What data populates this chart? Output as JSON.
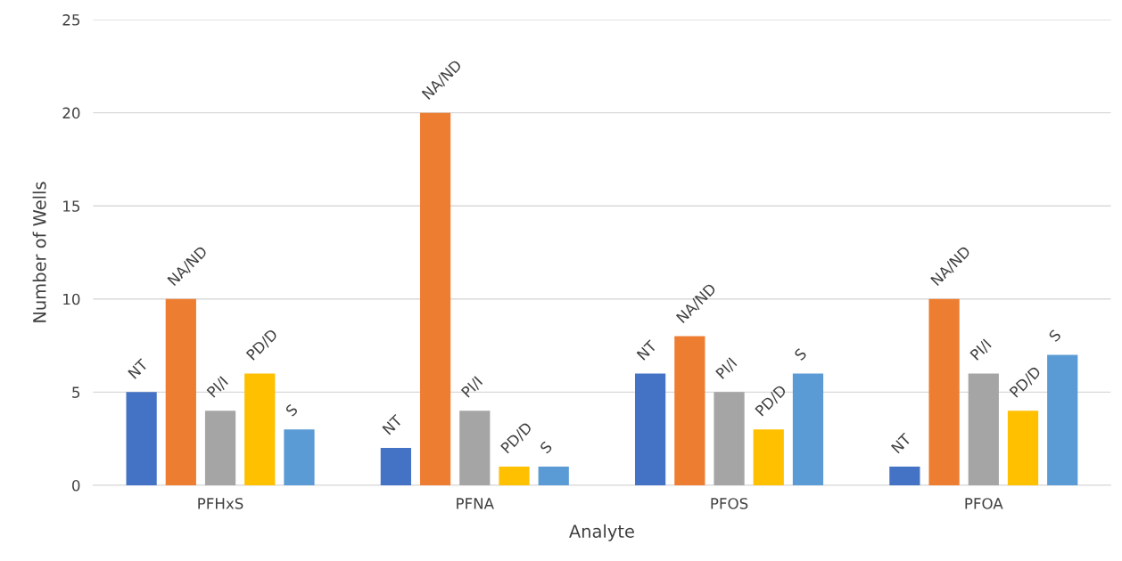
{
  "chart_data": {
    "type": "bar",
    "xlabel": "Analyte",
    "ylabel": "Number of Wells",
    "categories": [
      "PFHxS",
      "PFNA",
      "PFOS",
      "PFOA"
    ],
    "series": [
      {
        "name": "NT",
        "color": "#4472c4",
        "values": [
          5,
          2,
          6,
          1
        ]
      },
      {
        "name": "NA/ND",
        "color": "#ed7d31",
        "values": [
          10,
          20,
          8,
          10
        ]
      },
      {
        "name": "PI/I",
        "color": "#a5a5a5",
        "values": [
          4,
          4,
          5,
          6
        ]
      },
      {
        "name": "PD/D",
        "color": "#ffc000",
        "values": [
          6,
          1,
          3,
          4
        ]
      },
      {
        "name": "S",
        "color": "#5b9bd5",
        "values": [
          3,
          1,
          6,
          7
        ]
      }
    ],
    "ylim": [
      0,
      25
    ],
    "yticks": [
      0,
      5,
      10,
      15,
      20,
      25
    ],
    "grid": "y",
    "legend": false
  }
}
